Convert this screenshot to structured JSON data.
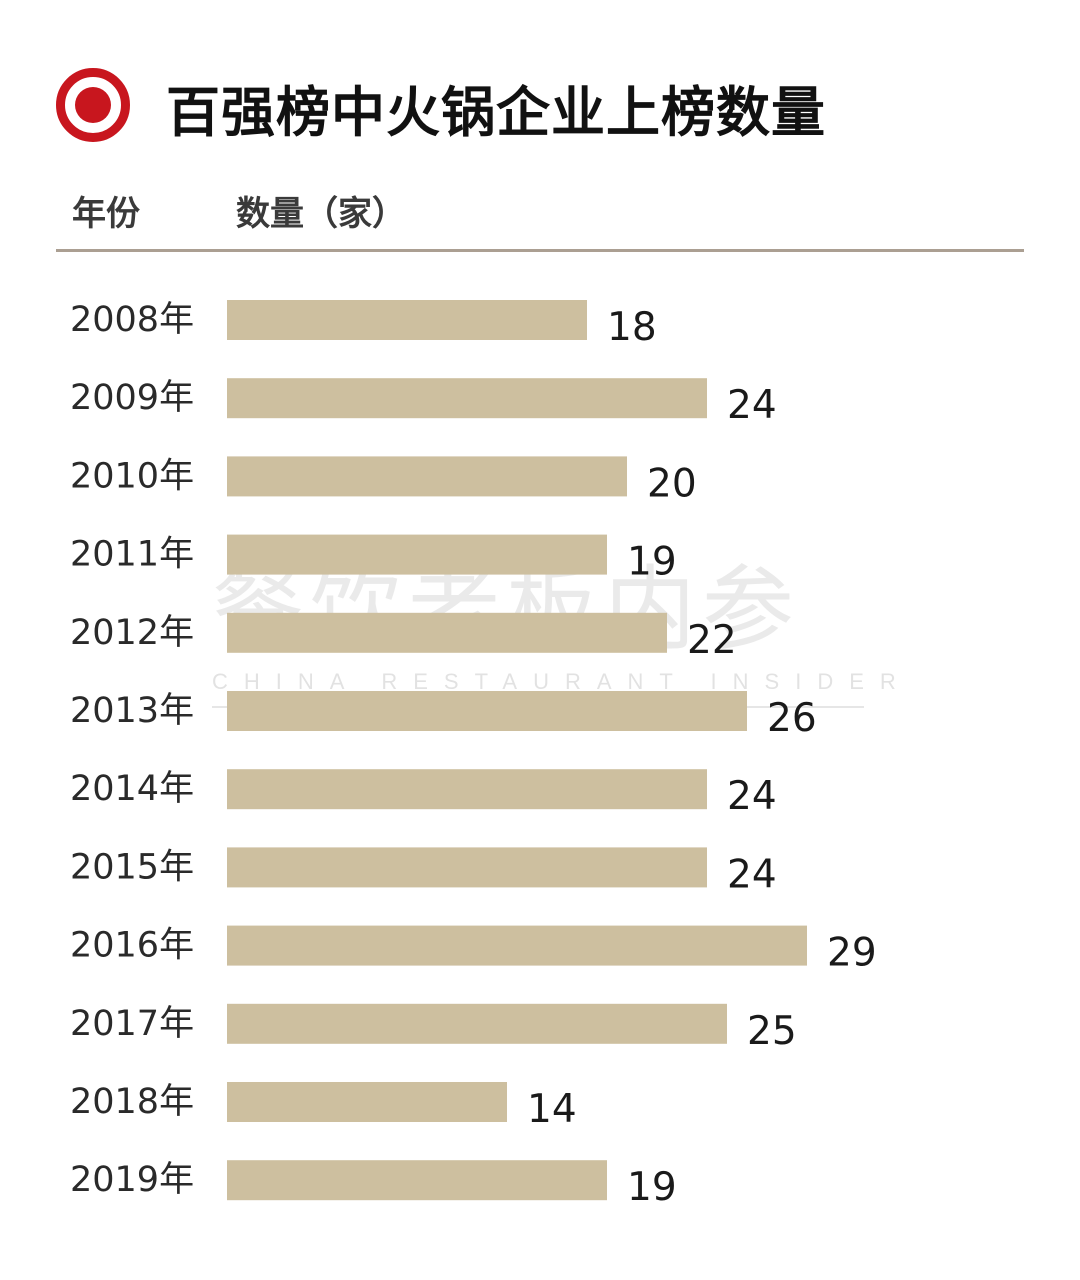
{
  "title": "百强榜中火锅企业上榜数量",
  "header": {
    "year_label": "年份",
    "count_label": "数量（家）"
  },
  "colors": {
    "bar": "#cdbf9f",
    "accent": "#c8161e",
    "rule": "#ab9f92"
  },
  "watermark": {
    "cn": "餐饮老板内参",
    "en": "CHINA RESTAURANT INSIDER",
    "ornament": "★"
  },
  "chart_data": {
    "type": "bar",
    "orientation": "horizontal",
    "title": "百强榜中火锅企业上榜数量",
    "categories": [
      "2008年",
      "2009年",
      "2010年",
      "2011年",
      "2012年",
      "2013年",
      "2014年",
      "2015年",
      "2016年",
      "2017年",
      "2018年",
      "2019年"
    ],
    "values": [
      18,
      24,
      20,
      19,
      22,
      26,
      24,
      24,
      29,
      25,
      14,
      19
    ],
    "xlabel": "数量（家）",
    "ylabel": "年份",
    "grid": false,
    "legend": "none"
  }
}
